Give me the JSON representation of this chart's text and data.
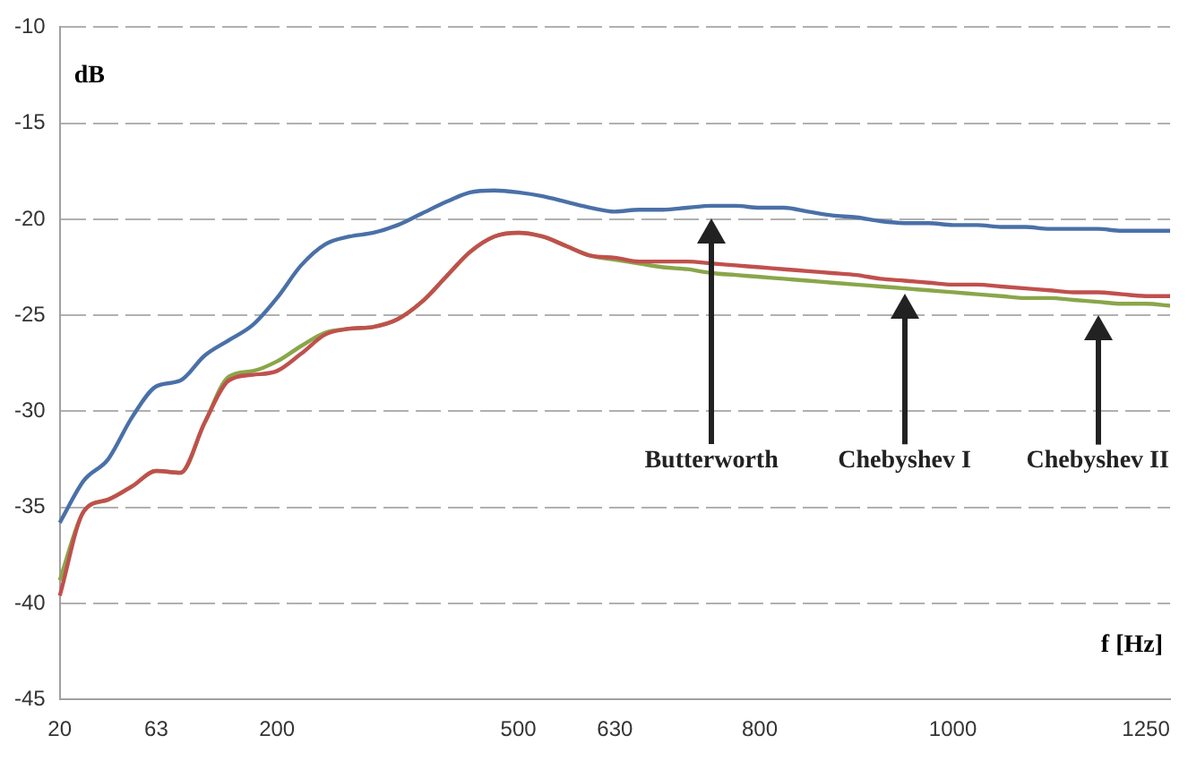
{
  "chart_data": {
    "type": "line",
    "xlabel": "f [Hz]",
    "ylabel": "dB",
    "categories": [
      "20",
      null,
      null,
      null,
      "63",
      null,
      null,
      null,
      null,
      "200",
      null,
      null,
      null,
      null,
      null,
      null,
      null,
      null,
      null,
      "500",
      null,
      null,
      null,
      "630",
      null,
      null,
      null,
      null,
      null,
      "800",
      null,
      null,
      null,
      null,
      null,
      null,
      null,
      "1000",
      null,
      null,
      null,
      null,
      null,
      null,
      null,
      "1250",
      null
    ],
    "series": [
      {
        "color": "#4a70a8",
        "values": [
          -35.8,
          -33.6,
          -32.5,
          -30.3,
          -28.7,
          -28.4,
          -27.1,
          -26.3,
          -25.5,
          -24.1,
          -22.4,
          -21.3,
          -20.9,
          -20.7,
          -20.3,
          -19.7,
          -19.1,
          -18.6,
          -18.5,
          -18.6,
          -18.8,
          -19.1,
          -19.4,
          -19.6,
          -19.5,
          -19.5,
          -19.4,
          -19.3,
          -19.3,
          -19.4,
          -19.4,
          -19.6,
          -19.8,
          -19.9,
          -20.1,
          -20.2,
          -20.2,
          -20.3,
          -20.3,
          -20.4,
          -20.4,
          -20.5,
          -20.5,
          -20.5,
          -20.6,
          -20.6,
          -20.6
        ]
      },
      {
        "color": "#c0504d",
        "values": [
          -39.6,
          -35.2,
          -34.6,
          -33.9,
          -33.1,
          -33.2,
          -30.6,
          -28.4,
          -28.1,
          -27.9,
          -27.0,
          -26.0,
          -25.7,
          -25.6,
          -25.2,
          -24.3,
          -23.0,
          -21.7,
          -20.9,
          -20.7,
          -20.9,
          -21.4,
          -21.9,
          -22.0,
          -22.2,
          -22.2,
          -22.2,
          -22.3,
          -22.4,
          -22.5,
          -22.6,
          -22.7,
          -22.8,
          -22.9,
          -23.1,
          -23.2,
          -23.3,
          -23.4,
          -23.4,
          -23.5,
          -23.6,
          -23.7,
          -23.8,
          -23.8,
          -23.9,
          -24.0,
          -24.0
        ]
      },
      {
        "color": "#8aa64a",
        "values": [
          -38.8,
          -35.2,
          -34.6,
          -33.9,
          -33.1,
          -33.2,
          -30.6,
          -28.2,
          -27.9,
          -27.4,
          -26.6,
          -25.9,
          -25.7,
          -25.6,
          -25.2,
          -24.3,
          -23.0,
          -21.7,
          -20.9,
          -20.7,
          -20.9,
          -21.4,
          -21.9,
          -22.1,
          -22.3,
          -22.5,
          -22.6,
          -22.8,
          -22.9,
          -23.0,
          -23.1,
          -23.2,
          -23.3,
          -23.4,
          -23.5,
          -23.6,
          -23.7,
          -23.8,
          -23.9,
          -24.0,
          -24.1,
          -24.1,
          -24.2,
          -24.3,
          -24.4,
          -24.4,
          -24.5
        ]
      }
    ],
    "ylim": [
      -45,
      -10
    ],
    "yticks": [
      -45,
      -40,
      -35,
      -30,
      -25,
      -20,
      -15,
      -10
    ],
    "grid": "y",
    "legend": false,
    "marker": "none",
    "line_style": "solid",
    "annotations": [
      "Butterworth",
      "Chebyshev I",
      "Chebyshev II"
    ]
  }
}
